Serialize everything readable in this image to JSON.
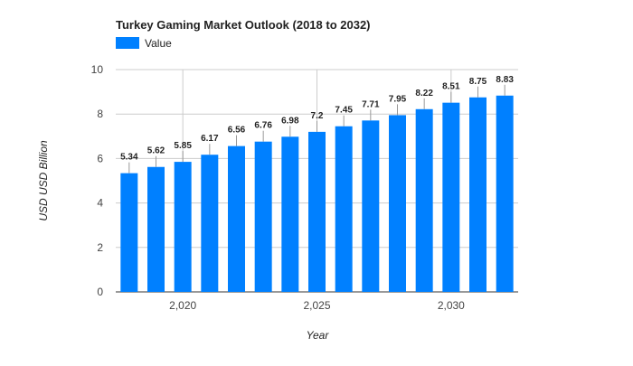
{
  "chart_data": {
    "type": "bar",
    "title": "Turkey Gaming Market Outlook (2018 to 2032)",
    "xlabel": "Year",
    "ylabel": "USD USD Billion",
    "x": [
      2018,
      2019,
      2020,
      2021,
      2022,
      2023,
      2024,
      2025,
      2026,
      2027,
      2028,
      2029,
      2030,
      2031,
      2032
    ],
    "series": [
      {
        "name": "Value",
        "values": [
          5.34,
          5.62,
          5.85,
          6.17,
          6.56,
          6.76,
          6.98,
          7.2,
          7.45,
          7.71,
          7.95,
          8.22,
          8.51,
          8.75,
          8.83
        ],
        "labels": [
          "5.34",
          "5.62",
          "5.85",
          "6.17",
          "6.56",
          "6.76",
          "6.98",
          "7.2",
          "7.45",
          "7.71",
          "7.95",
          "8.22",
          "8.51",
          "8.75",
          "8.83"
        ]
      }
    ],
    "ylim": [
      0,
      10
    ],
    "y_ticks": [
      "0",
      "2",
      "4",
      "6",
      "8",
      "10"
    ],
    "x_ticks": [
      {
        "value": 2020,
        "label": "2,020"
      },
      {
        "value": 2025,
        "label": "2,025"
      },
      {
        "value": 2030,
        "label": "2,030"
      }
    ],
    "legend_position": "top-left",
    "grid": true,
    "colors": {
      "bar": "#0080ff",
      "grid": "#cccccc",
      "axis_text": "#444444",
      "label_text": "#222222"
    }
  }
}
